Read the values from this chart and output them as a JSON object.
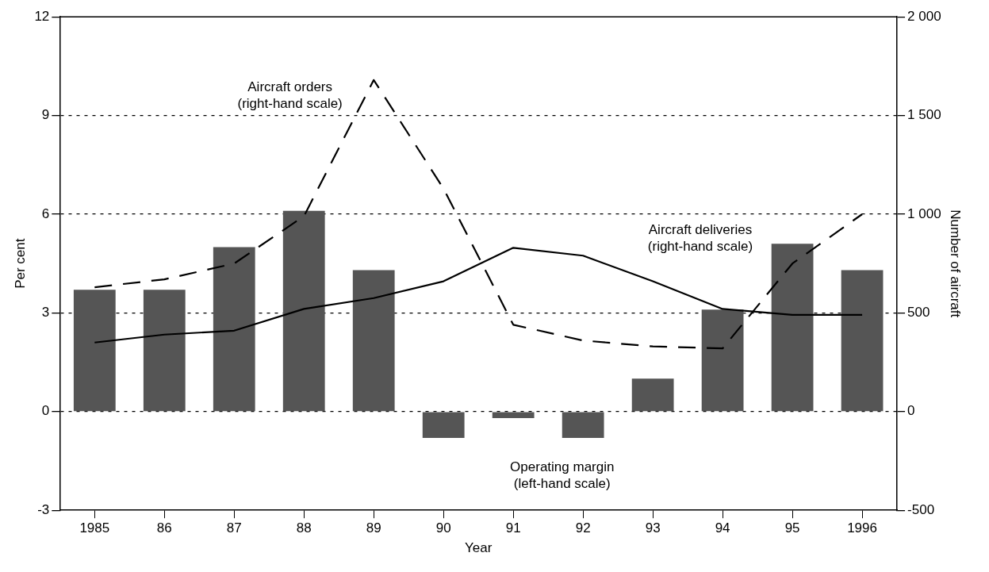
{
  "chart_data": {
    "type": "bar",
    "xlabel": "Year",
    "ylabel": "Per cent",
    "y2label": "Number of aircraft",
    "categories": [
      "1985",
      "86",
      "87",
      "88",
      "89",
      "90",
      "91",
      "92",
      "93",
      "94",
      "95",
      "1996"
    ],
    "series": [
      {
        "color": "#555555",
        "values": [
          3.7,
          3.7,
          5.0,
          6.1,
          4.3,
          -0.8,
          -0.2,
          -0.8,
          1.0,
          3.1,
          5.1,
          4.3
        ]
      },
      {
        "type": "line",
        "axis": "y2",
        "color": "#000000",
        "line_style": "dashed",
        "values": [
          630,
          670,
          750,
          990,
          1680,
          1130,
          440,
          360,
          330,
          320,
          750,
          1000
        ]
      },
      {
        "type": "line",
        "axis": "y2",
        "color": "#000000",
        "line_style": "solid",
        "values": [
          350,
          390,
          410,
          520,
          575,
          660,
          830,
          790,
          660,
          520,
          490,
          490
        ]
      }
    ],
    "ylim": [
      -3,
      12
    ],
    "yticks": [
      -3,
      0,
      3,
      6,
      9,
      12
    ],
    "y2lim": [
      -500,
      2000
    ],
    "y2ticks": [
      -500,
      0,
      500,
      {
        "value": 1000,
        "label": "1 000"
      },
      {
        "value": 1500,
        "label": "1 500"
      },
      {
        "value": 2000,
        "label": "2 000"
      }
    ],
    "grid": "y",
    "legend": false,
    "marker": "none",
    "annotations": [
      "Aircraft orders\n(right-hand scale)",
      "Aircraft deliveries\n(right-hand scale)",
      "Operating margin\n(left-hand scale)"
    ]
  }
}
